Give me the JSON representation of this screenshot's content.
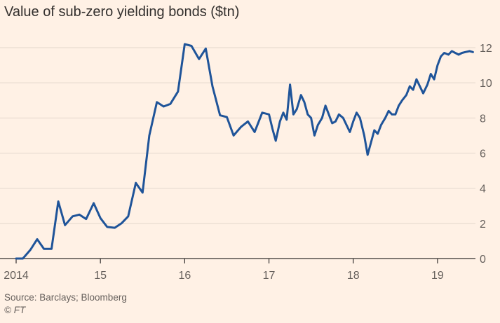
{
  "colors": {
    "background": "#fff1e5",
    "line": "#1f5499",
    "grid": "#e3d7cc",
    "axis": "#33302e"
  },
  "source": "Source: Barclays; Bloomberg",
  "copyright": "© FT",
  "chart_data": {
    "type": "line",
    "title": "Value of sub-zero yielding bonds ($tn)",
    "xlabel": "",
    "ylabel": "",
    "xlim": [
      2014.0,
      2019.45
    ],
    "ylim": [
      0,
      12
    ],
    "grid": true,
    "y_axis_position": "right",
    "x_ticks": [
      {
        "value": 2014,
        "label": "2014"
      },
      {
        "value": 2015,
        "label": "15"
      },
      {
        "value": 2016,
        "label": "16"
      },
      {
        "value": 2017,
        "label": "17"
      },
      {
        "value": 2018,
        "label": "18"
      },
      {
        "value": 2019,
        "label": "19"
      }
    ],
    "y_ticks": [
      0,
      2,
      4,
      6,
      8,
      10,
      12
    ],
    "series": [
      {
        "name": "Value of sub-zero yielding bonds",
        "x": [
          2014.0,
          2014.08,
          2014.17,
          2014.25,
          2014.33,
          2014.42,
          2014.5,
          2014.58,
          2014.67,
          2014.75,
          2014.83,
          2014.92,
          2015.0,
          2015.08,
          2015.17,
          2015.25,
          2015.33,
          2015.42,
          2015.5,
          2015.58,
          2015.67,
          2015.75,
          2015.83,
          2015.92,
          2016.0,
          2016.08,
          2016.17,
          2016.25,
          2016.33,
          2016.42,
          2016.5,
          2016.58,
          2016.67,
          2016.75,
          2016.83,
          2016.92,
          2017.0,
          2017.04,
          2017.08,
          2017.13,
          2017.17,
          2017.21,
          2017.25,
          2017.29,
          2017.33,
          2017.38,
          2017.42,
          2017.46,
          2017.5,
          2017.54,
          2017.58,
          2017.63,
          2017.67,
          2017.71,
          2017.75,
          2017.79,
          2017.83,
          2017.88,
          2017.92,
          2017.96,
          2018.0,
          2018.04,
          2018.08,
          2018.13,
          2018.17,
          2018.21,
          2018.25,
          2018.29,
          2018.33,
          2018.38,
          2018.42,
          2018.46,
          2018.5,
          2018.54,
          2018.58,
          2018.63,
          2018.67,
          2018.71,
          2018.75,
          2018.79,
          2018.83,
          2018.88,
          2018.92,
          2018.96,
          2019.0,
          2019.04,
          2019.08,
          2019.13,
          2019.17,
          2019.21,
          2019.25,
          2019.29,
          2019.33,
          2019.38,
          2019.42
        ],
        "values": [
          0.0,
          0.0,
          0.5,
          1.1,
          0.55,
          0.55,
          3.25,
          1.9,
          2.4,
          2.5,
          2.25,
          3.15,
          2.3,
          1.8,
          1.75,
          2.0,
          2.4,
          4.3,
          3.75,
          7.0,
          8.9,
          8.65,
          8.8,
          9.5,
          12.2,
          12.1,
          11.35,
          11.95,
          9.8,
          8.15,
          8.05,
          7.0,
          7.5,
          7.8,
          7.2,
          8.3,
          8.2,
          7.4,
          6.7,
          7.8,
          8.3,
          7.9,
          9.9,
          8.2,
          8.5,
          9.3,
          8.9,
          8.2,
          8.0,
          7.0,
          7.6,
          8.0,
          8.7,
          8.2,
          7.7,
          7.8,
          8.2,
          8.0,
          7.6,
          7.2,
          7.8,
          8.3,
          8.0,
          7.0,
          5.9,
          6.6,
          7.3,
          7.1,
          7.6,
          8.0,
          8.4,
          8.2,
          8.2,
          8.7,
          9.0,
          9.3,
          9.8,
          9.6,
          10.2,
          9.8,
          9.4,
          9.9,
          10.5,
          10.2,
          11.0,
          11.5,
          11.7,
          11.6,
          11.8,
          11.7,
          11.6,
          11.7,
          11.75,
          11.8,
          11.75
        ]
      }
    ]
  }
}
